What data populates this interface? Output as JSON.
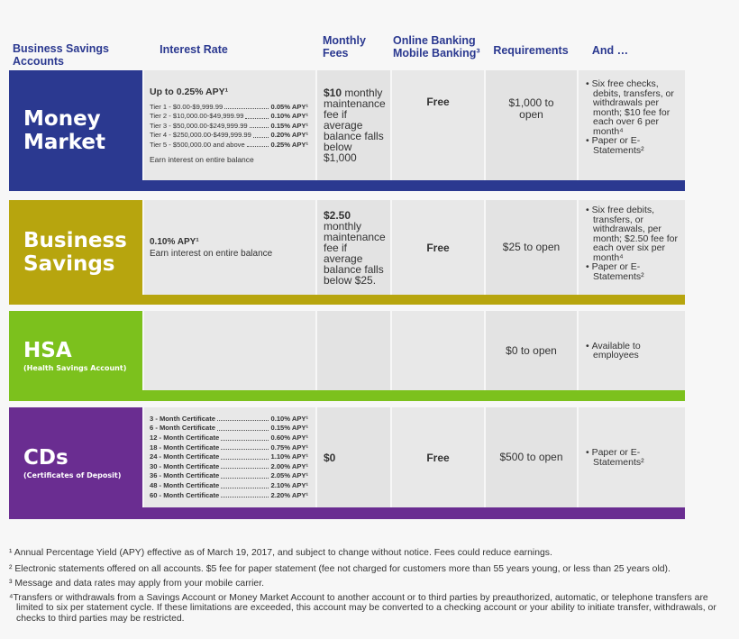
{
  "header": [
    "Business Savings Accounts",
    "Interest Rate",
    "Monthly Fees",
    "Online Banking Mobile Banking³",
    "Requirements",
    "And …"
  ],
  "rows": [
    {
      "name": "Money Market",
      "interest": {
        "headline": "Up to 0.25% APY¹",
        "tiers": [
          {
            "label": "Tier 1 - $0.00-$9,999.99",
            "rate": "0.05% APY¹"
          },
          {
            "label": "Tier 2 - $10,000.00-$49,999.99",
            "rate": "0.10% APY¹"
          },
          {
            "label": "Tier 3 - $50,000.00-$249,999.99",
            "rate": "0.15% APY¹"
          },
          {
            "label": "Tier 4 - $250,000.00-$499,999.99",
            "rate": "0.20% APY¹"
          },
          {
            "label": "Tier 5 - $500,000.00 and above",
            "rate": "0.25% APY¹"
          }
        ],
        "note": "Earn interest on entire balance"
      },
      "fees": {
        "amount": "$10",
        "text": "monthly maintenance fee if average balance falls below $1,000"
      },
      "online": "Free",
      "requirements": "$1,000 to open",
      "and": [
        "Six free checks, debits, transfers, or withdrawals per month; $10 fee for each over 6 per month⁴",
        "Paper or E-Statements²"
      ]
    },
    {
      "name": "Business Savings",
      "interest": {
        "headline": "0.10% APY¹",
        "note": "Earn interest on entire balance"
      },
      "fees": {
        "amount": "$2.50",
        "text": "monthly maintenance fee if average balance falls below $25."
      },
      "online": "Free",
      "requirements": "$25 to open",
      "and": [
        "Six free debits, transfers, or withdrawals, per month; $2.50 fee for each over six per month⁴",
        "Paper or E-Statements²"
      ]
    },
    {
      "name": "HSA",
      "subtitle": "(Health Savings Account)",
      "requirements": "$0 to open",
      "and": [
        "Available to employees"
      ]
    },
    {
      "name": "CDs",
      "subtitle": "(Certificates of Deposit)",
      "interest": {
        "tiers": [
          {
            "label": "3 - Month Certificate",
            "rate": "0.10% APY¹"
          },
          {
            "label": "6 - Month Certificate",
            "rate": "0.15% APY¹"
          },
          {
            "label": "12 - Month Certificate",
            "rate": "0.60% APY¹"
          },
          {
            "label": "18 - Month Certificate",
            "rate": "0.75% APY¹"
          },
          {
            "label": "24 - Month Certificate",
            "rate": "1.10% APY¹"
          },
          {
            "label": "30 - Month Certificate",
            "rate": "2.00% APY¹"
          },
          {
            "label": "36 - Month Certificate",
            "rate": "2.05% APY¹"
          },
          {
            "label": "48 - Month Certificate",
            "rate": "2.10% APY¹"
          },
          {
            "label": "60 - Month Certificate",
            "rate": "2.20% APY¹"
          }
        ]
      },
      "fees": {
        "amount": "$0"
      },
      "online": "Free",
      "requirements": "$500 to open",
      "and": [
        "Paper or E-Statements²"
      ]
    }
  ],
  "footnotes": [
    "¹ Annual Percentage Yield (APY) effective as of March 19, 2017, and subject to change without notice. Fees could reduce earnings.",
    "² Electronic statements offered on all accounts. $5 fee for paper statement (fee not charged for customers more than 55 years young, or less than 25 years old).",
    "³ Message and data rates may apply from your mobile carrier.",
    "⁴Transfers or withdrawals from a Savings Account or Money Market Account to another account or to third parties by preauthorized, automatic, or telephone transfers are limited to six per statement cycle.  If these limitations are exceeded, this account may be converted to a checking account or your ability to initiate transfer, withdrawals, or checks to third parties may be restricted."
  ]
}
